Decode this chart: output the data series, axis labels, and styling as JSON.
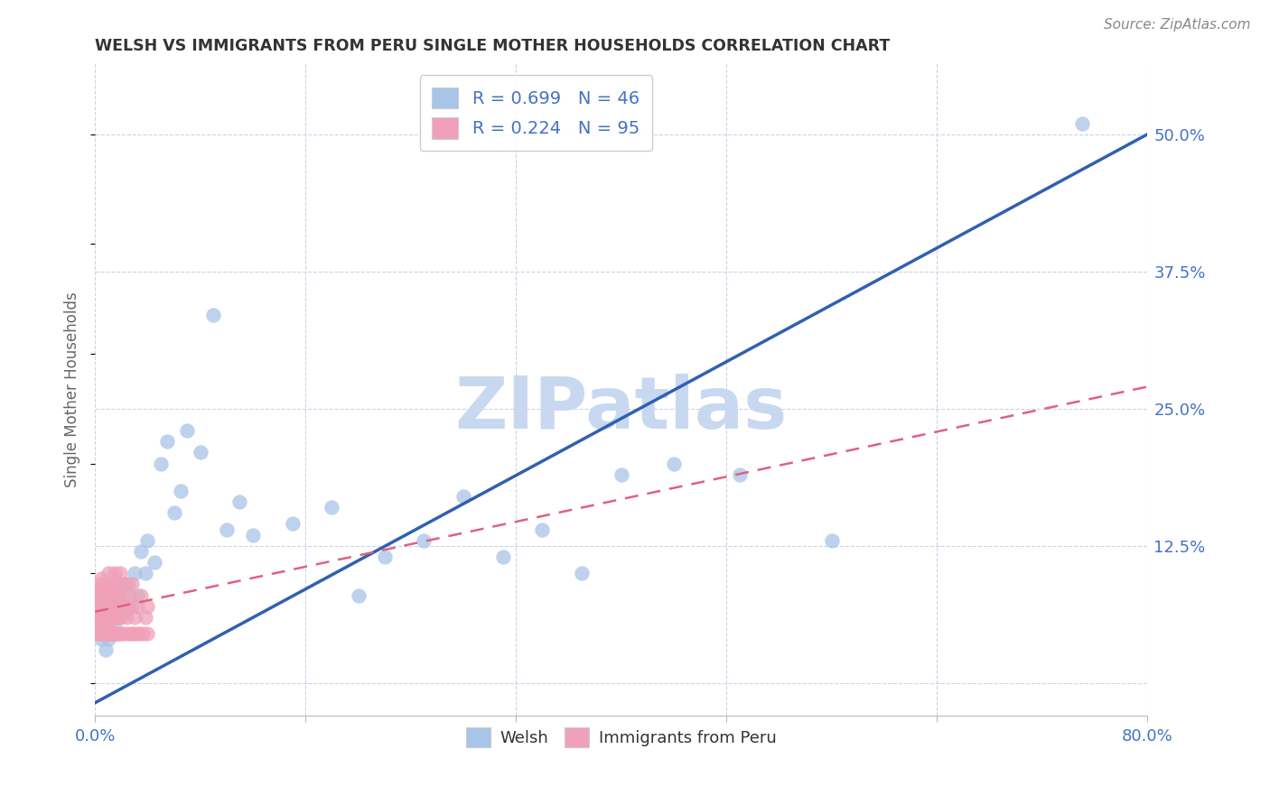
{
  "title": "WELSH VS IMMIGRANTS FROM PERU SINGLE MOTHER HOUSEHOLDS CORRELATION CHART",
  "source": "Source: ZipAtlas.com",
  "ylabel": "Single Mother Households",
  "xlim": [
    0.0,
    0.8
  ],
  "ylim": [
    -0.03,
    0.565
  ],
  "yticks": [
    0.0,
    0.125,
    0.25,
    0.375,
    0.5
  ],
  "ytick_labels": [
    "",
    "12.5%",
    "25.0%",
    "37.5%",
    "50.0%"
  ],
  "blue_color": "#a8c4e8",
  "pink_color": "#f0a0b8",
  "blue_line_color": "#3060b0",
  "pink_line_color": "#e06080",
  "grid_color": "#c8d4e8",
  "watermark_color": "#c8d8f0",
  "welsh_label": "Welsh",
  "peru_label": "Immigrants from Peru",
  "blue_line_x": [
    0.0,
    0.8
  ],
  "blue_line_y": [
    -0.018,
    0.5
  ],
  "pink_line_x": [
    0.0,
    0.8
  ],
  "pink_line_y": [
    0.065,
    0.27
  ],
  "blue_scatter_x": [
    0.003,
    0.005,
    0.007,
    0.008,
    0.009,
    0.01,
    0.011,
    0.012,
    0.013,
    0.015,
    0.016,
    0.018,
    0.02,
    0.022,
    0.025,
    0.028,
    0.03,
    0.032,
    0.035,
    0.038,
    0.04,
    0.045,
    0.05,
    0.055,
    0.06,
    0.065,
    0.07,
    0.08,
    0.09,
    0.1,
    0.11,
    0.12,
    0.15,
    0.18,
    0.2,
    0.22,
    0.25,
    0.28,
    0.31,
    0.34,
    0.37,
    0.4,
    0.44,
    0.49,
    0.56,
    0.75
  ],
  "blue_scatter_y": [
    0.05,
    0.04,
    0.06,
    0.03,
    0.05,
    0.04,
    0.055,
    0.06,
    0.07,
    0.055,
    0.08,
    0.06,
    0.085,
    0.065,
    0.09,
    0.07,
    0.1,
    0.08,
    0.12,
    0.1,
    0.13,
    0.11,
    0.2,
    0.22,
    0.155,
    0.175,
    0.23,
    0.21,
    0.335,
    0.14,
    0.165,
    0.135,
    0.145,
    0.16,
    0.08,
    0.115,
    0.13,
    0.17,
    0.115,
    0.14,
    0.1,
    0.19,
    0.2,
    0.19,
    0.13,
    0.51
  ],
  "pink_scatter_x": [
    0.001,
    0.001,
    0.001,
    0.002,
    0.002,
    0.002,
    0.002,
    0.003,
    0.003,
    0.003,
    0.003,
    0.004,
    0.004,
    0.004,
    0.004,
    0.005,
    0.005,
    0.005,
    0.005,
    0.006,
    0.006,
    0.006,
    0.007,
    0.007,
    0.007,
    0.008,
    0.008,
    0.008,
    0.009,
    0.009,
    0.01,
    0.01,
    0.01,
    0.011,
    0.011,
    0.012,
    0.012,
    0.013,
    0.013,
    0.014,
    0.015,
    0.015,
    0.016,
    0.016,
    0.017,
    0.018,
    0.019,
    0.02,
    0.021,
    0.022,
    0.023,
    0.024,
    0.025,
    0.026,
    0.028,
    0.03,
    0.032,
    0.035,
    0.038,
    0.04,
    0.001,
    0.001,
    0.002,
    0.002,
    0.003,
    0.003,
    0.004,
    0.004,
    0.005,
    0.005,
    0.006,
    0.006,
    0.007,
    0.007,
    0.008,
    0.008,
    0.009,
    0.009,
    0.01,
    0.01,
    0.011,
    0.012,
    0.013,
    0.014,
    0.015,
    0.016,
    0.018,
    0.02,
    0.022,
    0.025,
    0.028,
    0.03,
    0.033,
    0.036,
    0.04
  ],
  "pink_scatter_y": [
    0.06,
    0.07,
    0.08,
    0.055,
    0.065,
    0.075,
    0.085,
    0.06,
    0.07,
    0.08,
    0.09,
    0.055,
    0.065,
    0.075,
    0.085,
    0.06,
    0.07,
    0.08,
    0.095,
    0.055,
    0.065,
    0.075,
    0.06,
    0.07,
    0.08,
    0.055,
    0.065,
    0.075,
    0.06,
    0.07,
    0.08,
    0.09,
    0.1,
    0.06,
    0.07,
    0.08,
    0.09,
    0.06,
    0.07,
    0.08,
    0.09,
    0.1,
    0.06,
    0.07,
    0.08,
    0.09,
    0.1,
    0.06,
    0.07,
    0.08,
    0.09,
    0.06,
    0.07,
    0.08,
    0.09,
    0.06,
    0.07,
    0.08,
    0.06,
    0.07,
    0.05,
    0.06,
    0.045,
    0.055,
    0.045,
    0.055,
    0.045,
    0.055,
    0.045,
    0.055,
    0.045,
    0.055,
    0.045,
    0.055,
    0.045,
    0.055,
    0.045,
    0.055,
    0.045,
    0.055,
    0.045,
    0.045,
    0.045,
    0.045,
    0.045,
    0.045,
    0.045,
    0.045,
    0.045,
    0.045,
    0.045,
    0.045,
    0.045,
    0.045,
    0.045
  ]
}
